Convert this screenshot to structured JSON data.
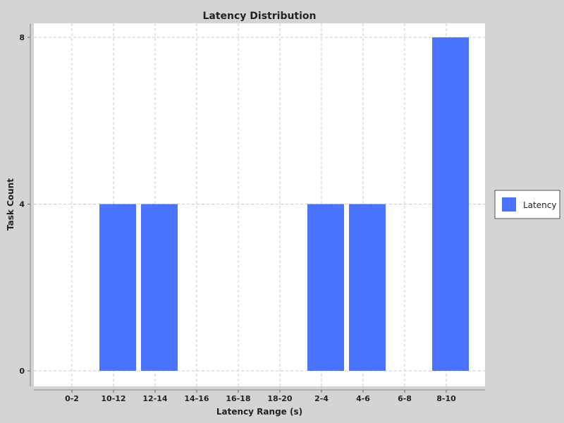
{
  "colors": {
    "background": "#d4d4d4",
    "plot_background": "#ffffff",
    "bar": "#4a73ff",
    "grid": "#c8c8c8"
  },
  "chart_data": {
    "type": "bar",
    "title": "Latency Distribution",
    "xlabel": "Latency Range (s)",
    "ylabel": "Task Count",
    "categories": [
      "0-2",
      "10-12",
      "12-14",
      "14-16",
      "16-18",
      "18-20",
      "2-4",
      "4-6",
      "6-8",
      "8-10"
    ],
    "series": [
      {
        "name": "Latency",
        "values": [
          0,
          4,
          4,
          0,
          0,
          0,
          4,
          4,
          0,
          8
        ]
      }
    ],
    "ylim": [
      0,
      8
    ],
    "yticks": [
      "0",
      "4",
      "8"
    ],
    "grid": true,
    "grid_style": "dashed",
    "legend_position": "right"
  }
}
